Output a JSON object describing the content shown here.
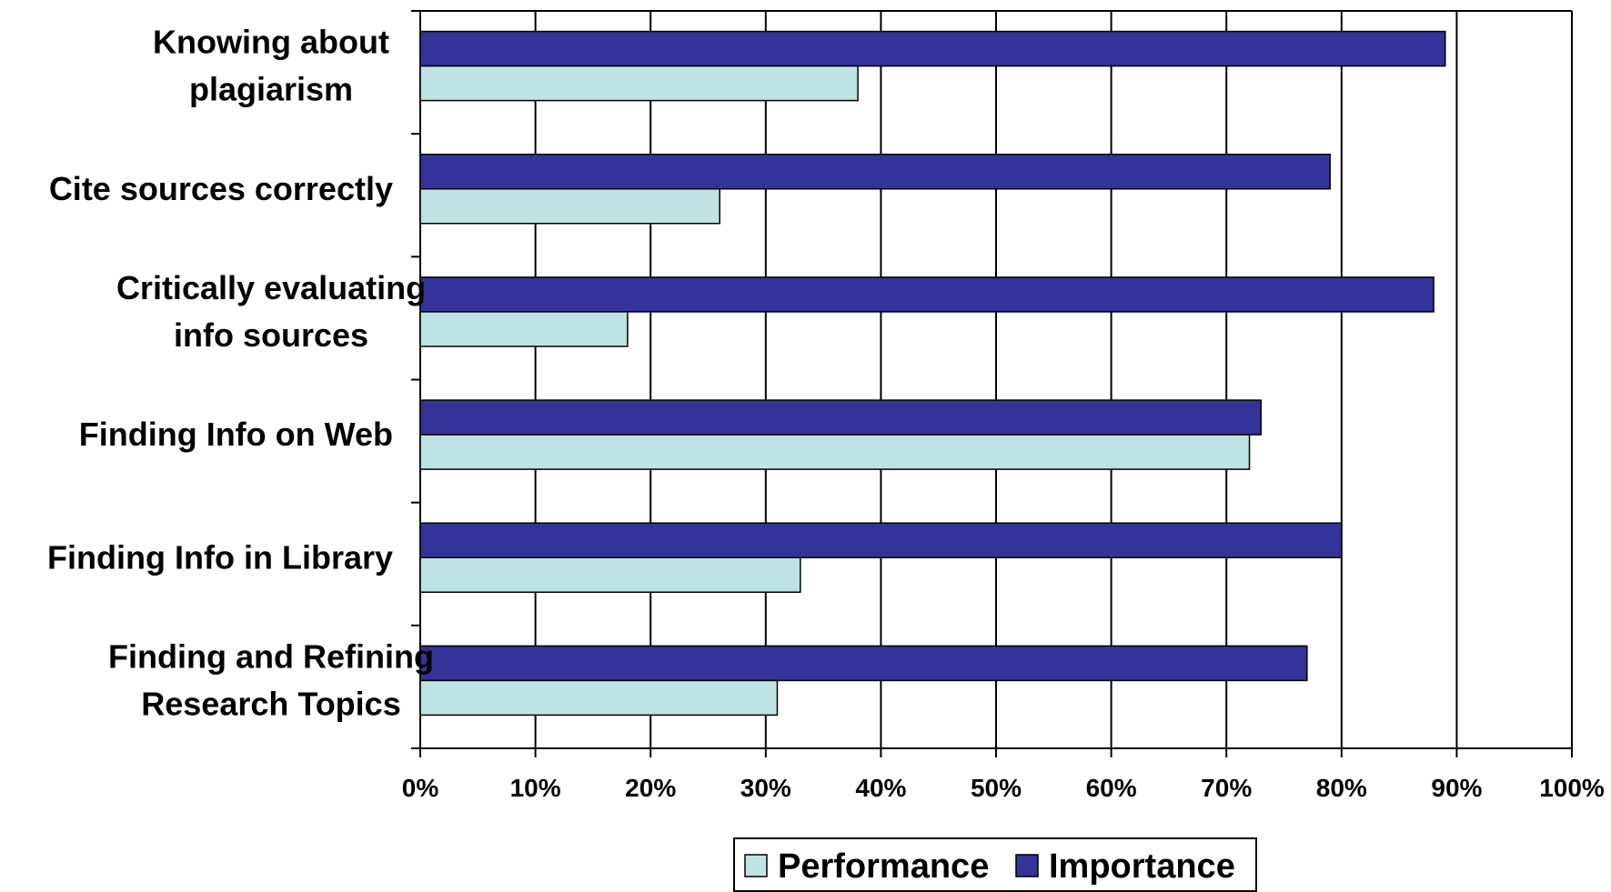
{
  "chart_data": {
    "type": "bar",
    "orientation": "horizontal",
    "categories": [
      [
        "Knowing about",
        "plagiarism"
      ],
      [
        "Cite sources correctly"
      ],
      [
        "Critically evaluating",
        "info sources"
      ],
      [
        "Finding Info on Web"
      ],
      [
        "Finding Info in Library"
      ],
      [
        "Finding and Refining",
        "Research Topics"
      ]
    ],
    "series": [
      {
        "name": "Importance",
        "color": "#333399",
        "values": [
          89,
          79,
          88,
          73,
          80,
          77
        ]
      },
      {
        "name": "Performance",
        "color": "#bfe3e3",
        "values": [
          38,
          26,
          18,
          72,
          33,
          31
        ]
      }
    ],
    "xlim": [
      0,
      100
    ],
    "xticks": [
      "0%",
      "10%",
      "20%",
      "30%",
      "40%",
      "50%",
      "60%",
      "70%",
      "80%",
      "90%",
      "100%"
    ],
    "grid": "vertical",
    "legend": {
      "position": "bottom",
      "items": [
        "Performance",
        "Importance"
      ]
    },
    "title": "",
    "xlabel": "",
    "ylabel": ""
  }
}
